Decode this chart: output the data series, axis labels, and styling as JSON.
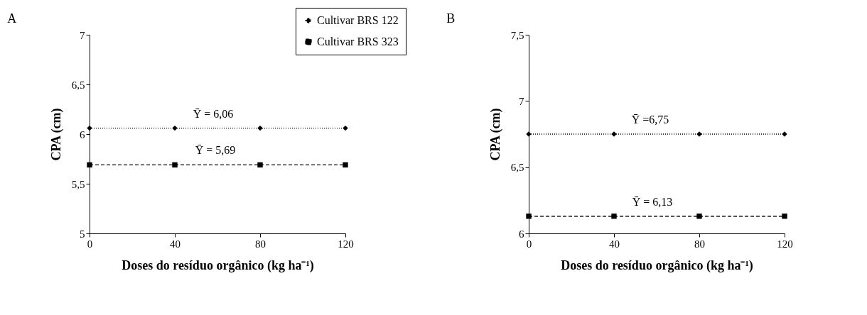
{
  "chart_data": [
    {
      "type": "line",
      "title": "A",
      "xlabel": "Doses do resíduo orgânico (kg ha⁻¹)",
      "ylabel": "CPA (cm)",
      "x": [
        0,
        40,
        80,
        120
      ],
      "xlim": [
        0,
        120
      ],
      "xticks": [
        0,
        40,
        80,
        120
      ],
      "ylim": [
        5,
        7
      ],
      "yticks": [
        5,
        {
          "value": 5.5,
          "label": "5,5"
        },
        6,
        {
          "value": 6.5,
          "label": "6,5"
        },
        7
      ],
      "grid": false,
      "legend": "top right",
      "series": [
        {
          "name": "Cultivar BRS 122",
          "color": "#000000",
          "marker": "diamond",
          "line_style": "dotted",
          "values": [
            6.06,
            6.06,
            6.06,
            6.06
          ]
        },
        {
          "name": "Cultivar BRS 323",
          "color": "#000000",
          "marker": "square",
          "line_style": "dashed",
          "values": [
            5.69,
            5.69,
            5.69,
            5.69
          ]
        }
      ],
      "annotations": [
        {
          "text": "Ȳ = 6,06",
          "x": 58,
          "y": 6.06
        },
        {
          "text": "Ȳ = 5,69",
          "x": 59,
          "y": 5.69
        }
      ]
    },
    {
      "type": "line",
      "title": "B",
      "xlabel": "Doses do resíduo orgânico (kg ha⁻¹)",
      "ylabel": "CPA (cm)",
      "x": [
        0,
        40,
        80,
        120
      ],
      "xlim": [
        0,
        120
      ],
      "xticks": [
        0,
        40,
        80,
        120
      ],
      "ylim": [
        6,
        7.5
      ],
      "yticks": [
        6,
        {
          "value": 6.5,
          "label": "6,5"
        },
        7,
        {
          "value": 7.5,
          "label": "7,5"
        }
      ],
      "grid": false,
      "legend": "top right",
      "series": [
        {
          "name": "Cultivar BRS 122",
          "color": "#000000",
          "marker": "diamond",
          "line_style": "dotted",
          "values": [
            6.75,
            6.75,
            6.75,
            6.75
          ]
        },
        {
          "name": "Cultivar BRS 323",
          "color": "#000000",
          "marker": "square",
          "line_style": "dashed",
          "values": [
            6.13,
            6.13,
            6.13,
            6.13
          ]
        }
      ],
      "annotations": [
        {
          "text": "Ȳ =6,75",
          "x": 57,
          "y": 6.75
        },
        {
          "text": "Ȳ = 6,13",
          "x": 58,
          "y": 6.13
        }
      ]
    }
  ]
}
